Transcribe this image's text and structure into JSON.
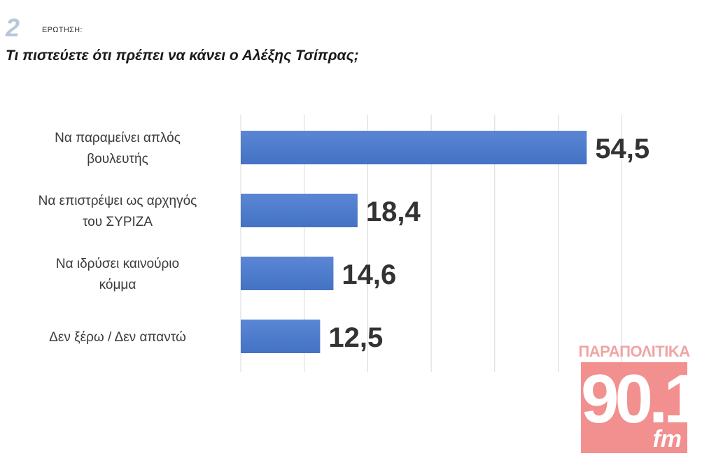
{
  "header": {
    "question_number": "2",
    "question_tag": "ΕΡΩΤΗΣΗ:",
    "question_text": "Τι πιστεύετε ότι πρέπει να κάνει ο Αλέξης Τσίπρας;"
  },
  "chart_data": {
    "type": "bar",
    "orientation": "horizontal",
    "title": "Τι πιστεύετε ότι πρέπει να κάνει ο Αλέξης Τσίπρας;",
    "categories": [
      [
        "Να παραμείνει απλός",
        "βουλευτής"
      ],
      [
        "Να επιστρέψει ως αρχηγός",
        "του ΣΥΡΙΖΑ"
      ],
      [
        "Να ιδρύσει καινούριο",
        "κόμμα"
      ],
      [
        "Δεν ξέρω / Δεν απαντώ"
      ]
    ],
    "values": [
      54.5,
      18.4,
      14.6,
      12.5
    ],
    "value_labels": [
      "54,5",
      "18,4",
      "14,6",
      "12,5"
    ],
    "xlim": [
      0,
      60
    ],
    "grid": true,
    "bar_color": "#4472c4",
    "grid_color": "#d9d9d9"
  },
  "logo": {
    "top_text": "ΠΑΡΑΠΟΛΙΤΙΚΑ",
    "number": "90.1",
    "suffix": "fm",
    "color": "#f28f8f"
  }
}
